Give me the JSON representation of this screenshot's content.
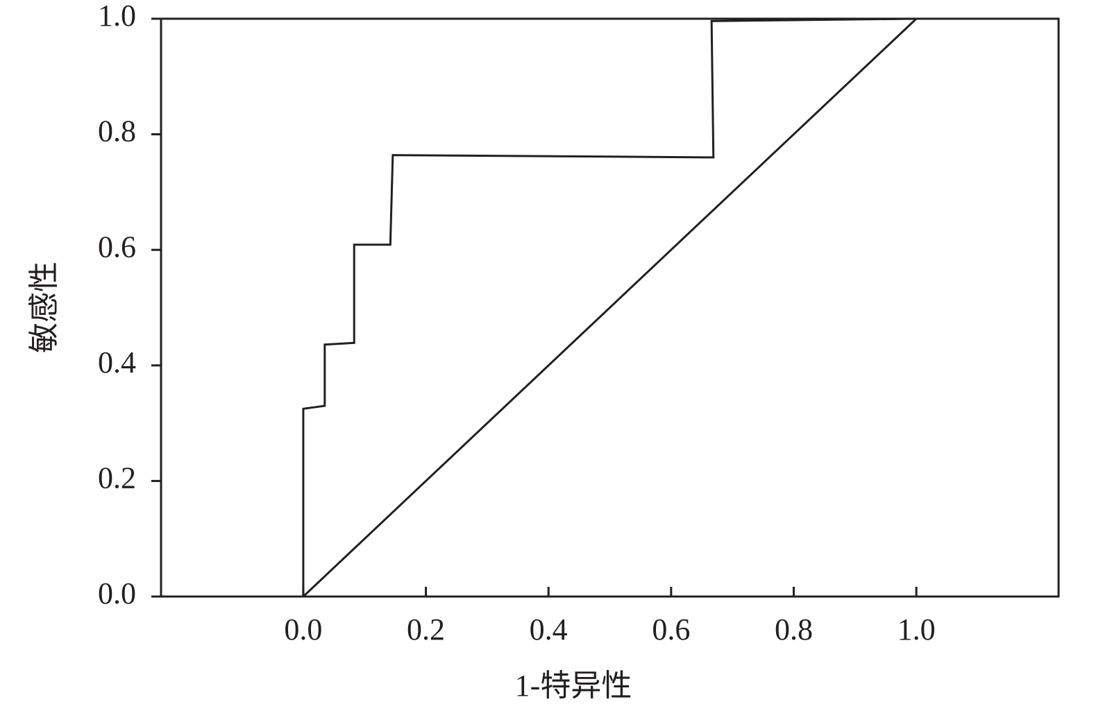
{
  "chart_data": {
    "type": "line",
    "x_label": "1-特异性",
    "y_label": "敏感性",
    "xlim": [
      -0.232,
      1.232
    ],
    "ylim": [
      0,
      1
    ],
    "xticks": [
      {
        "value": 0,
        "label": "0.0"
      },
      {
        "value": 0.2,
        "label": "0.2"
      },
      {
        "value": 0.4,
        "label": "0.4"
      },
      {
        "value": 0.6,
        "label": "0.6"
      },
      {
        "value": 0.8,
        "label": "0.8"
      },
      {
        "value": 1,
        "label": "1.0"
      }
    ],
    "yticks": [
      {
        "value": 0,
        "label": "0.0"
      },
      {
        "value": 0.2,
        "label": "0.2"
      },
      {
        "value": 0.4,
        "label": "0.4"
      },
      {
        "value": 0.6,
        "label": "0.6"
      },
      {
        "value": 0.8,
        "label": "0.8"
      },
      {
        "value": 1,
        "label": "1.0"
      }
    ],
    "grid": false,
    "series": [
      {
        "color": "#231f20",
        "x": [
          0,
          0,
          0.035,
          0.035,
          0.083,
          0.083,
          0.142,
          0.146,
          0.669,
          0.666,
          1.0
        ],
        "values": [
          0,
          0.325,
          0.33,
          0.436,
          0.439,
          0.609,
          0.609,
          0.764,
          0.76,
          0.996,
          1.0
        ]
      },
      {
        "color": "#231f20",
        "x": [
          0,
          1
        ],
        "values": [
          0,
          1
        ]
      }
    ]
  }
}
